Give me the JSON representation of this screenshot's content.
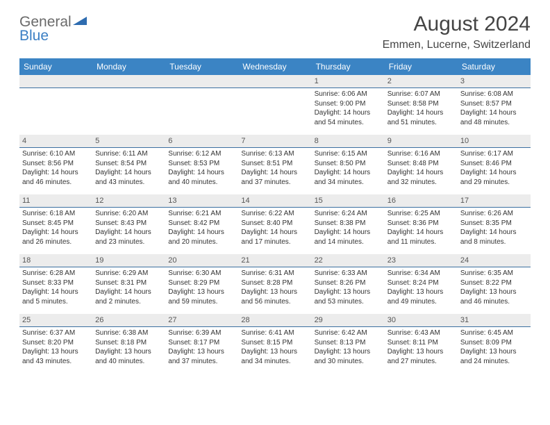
{
  "logo": {
    "line1": "General",
    "line2": "Blue"
  },
  "title": "August 2024",
  "subtitle": "Emmen, Lucerne, Switzerland",
  "colors": {
    "header_bg": "#3b84c4",
    "header_fg": "#ffffff",
    "date_bg": "#ececec",
    "date_border": "#3b6fa0",
    "title_color": "#444444",
    "body_fg": "#333333"
  },
  "day_headers": [
    "Sunday",
    "Monday",
    "Tuesday",
    "Wednesday",
    "Thursday",
    "Friday",
    "Saturday"
  ],
  "weeks": [
    [
      {
        "date": "",
        "sunrise": "",
        "sunset": "",
        "daylight": ""
      },
      {
        "date": "",
        "sunrise": "",
        "sunset": "",
        "daylight": ""
      },
      {
        "date": "",
        "sunrise": "",
        "sunset": "",
        "daylight": ""
      },
      {
        "date": "",
        "sunrise": "",
        "sunset": "",
        "daylight": ""
      },
      {
        "date": "1",
        "sunrise": "Sunrise: 6:06 AM",
        "sunset": "Sunset: 9:00 PM",
        "daylight": "Daylight: 14 hours and 54 minutes."
      },
      {
        "date": "2",
        "sunrise": "Sunrise: 6:07 AM",
        "sunset": "Sunset: 8:58 PM",
        "daylight": "Daylight: 14 hours and 51 minutes."
      },
      {
        "date": "3",
        "sunrise": "Sunrise: 6:08 AM",
        "sunset": "Sunset: 8:57 PM",
        "daylight": "Daylight: 14 hours and 48 minutes."
      }
    ],
    [
      {
        "date": "4",
        "sunrise": "Sunrise: 6:10 AM",
        "sunset": "Sunset: 8:56 PM",
        "daylight": "Daylight: 14 hours and 46 minutes."
      },
      {
        "date": "5",
        "sunrise": "Sunrise: 6:11 AM",
        "sunset": "Sunset: 8:54 PM",
        "daylight": "Daylight: 14 hours and 43 minutes."
      },
      {
        "date": "6",
        "sunrise": "Sunrise: 6:12 AM",
        "sunset": "Sunset: 8:53 PM",
        "daylight": "Daylight: 14 hours and 40 minutes."
      },
      {
        "date": "7",
        "sunrise": "Sunrise: 6:13 AM",
        "sunset": "Sunset: 8:51 PM",
        "daylight": "Daylight: 14 hours and 37 minutes."
      },
      {
        "date": "8",
        "sunrise": "Sunrise: 6:15 AM",
        "sunset": "Sunset: 8:50 PM",
        "daylight": "Daylight: 14 hours and 34 minutes."
      },
      {
        "date": "9",
        "sunrise": "Sunrise: 6:16 AM",
        "sunset": "Sunset: 8:48 PM",
        "daylight": "Daylight: 14 hours and 32 minutes."
      },
      {
        "date": "10",
        "sunrise": "Sunrise: 6:17 AM",
        "sunset": "Sunset: 8:46 PM",
        "daylight": "Daylight: 14 hours and 29 minutes."
      }
    ],
    [
      {
        "date": "11",
        "sunrise": "Sunrise: 6:18 AM",
        "sunset": "Sunset: 8:45 PM",
        "daylight": "Daylight: 14 hours and 26 minutes."
      },
      {
        "date": "12",
        "sunrise": "Sunrise: 6:20 AM",
        "sunset": "Sunset: 8:43 PM",
        "daylight": "Daylight: 14 hours and 23 minutes."
      },
      {
        "date": "13",
        "sunrise": "Sunrise: 6:21 AM",
        "sunset": "Sunset: 8:42 PM",
        "daylight": "Daylight: 14 hours and 20 minutes."
      },
      {
        "date": "14",
        "sunrise": "Sunrise: 6:22 AM",
        "sunset": "Sunset: 8:40 PM",
        "daylight": "Daylight: 14 hours and 17 minutes."
      },
      {
        "date": "15",
        "sunrise": "Sunrise: 6:24 AM",
        "sunset": "Sunset: 8:38 PM",
        "daylight": "Daylight: 14 hours and 14 minutes."
      },
      {
        "date": "16",
        "sunrise": "Sunrise: 6:25 AM",
        "sunset": "Sunset: 8:36 PM",
        "daylight": "Daylight: 14 hours and 11 minutes."
      },
      {
        "date": "17",
        "sunrise": "Sunrise: 6:26 AM",
        "sunset": "Sunset: 8:35 PM",
        "daylight": "Daylight: 14 hours and 8 minutes."
      }
    ],
    [
      {
        "date": "18",
        "sunrise": "Sunrise: 6:28 AM",
        "sunset": "Sunset: 8:33 PM",
        "daylight": "Daylight: 14 hours and 5 minutes."
      },
      {
        "date": "19",
        "sunrise": "Sunrise: 6:29 AM",
        "sunset": "Sunset: 8:31 PM",
        "daylight": "Daylight: 14 hours and 2 minutes."
      },
      {
        "date": "20",
        "sunrise": "Sunrise: 6:30 AM",
        "sunset": "Sunset: 8:29 PM",
        "daylight": "Daylight: 13 hours and 59 minutes."
      },
      {
        "date": "21",
        "sunrise": "Sunrise: 6:31 AM",
        "sunset": "Sunset: 8:28 PM",
        "daylight": "Daylight: 13 hours and 56 minutes."
      },
      {
        "date": "22",
        "sunrise": "Sunrise: 6:33 AM",
        "sunset": "Sunset: 8:26 PM",
        "daylight": "Daylight: 13 hours and 53 minutes."
      },
      {
        "date": "23",
        "sunrise": "Sunrise: 6:34 AM",
        "sunset": "Sunset: 8:24 PM",
        "daylight": "Daylight: 13 hours and 49 minutes."
      },
      {
        "date": "24",
        "sunrise": "Sunrise: 6:35 AM",
        "sunset": "Sunset: 8:22 PM",
        "daylight": "Daylight: 13 hours and 46 minutes."
      }
    ],
    [
      {
        "date": "25",
        "sunrise": "Sunrise: 6:37 AM",
        "sunset": "Sunset: 8:20 PM",
        "daylight": "Daylight: 13 hours and 43 minutes."
      },
      {
        "date": "26",
        "sunrise": "Sunrise: 6:38 AM",
        "sunset": "Sunset: 8:18 PM",
        "daylight": "Daylight: 13 hours and 40 minutes."
      },
      {
        "date": "27",
        "sunrise": "Sunrise: 6:39 AM",
        "sunset": "Sunset: 8:17 PM",
        "daylight": "Daylight: 13 hours and 37 minutes."
      },
      {
        "date": "28",
        "sunrise": "Sunrise: 6:41 AM",
        "sunset": "Sunset: 8:15 PM",
        "daylight": "Daylight: 13 hours and 34 minutes."
      },
      {
        "date": "29",
        "sunrise": "Sunrise: 6:42 AM",
        "sunset": "Sunset: 8:13 PM",
        "daylight": "Daylight: 13 hours and 30 minutes."
      },
      {
        "date": "30",
        "sunrise": "Sunrise: 6:43 AM",
        "sunset": "Sunset: 8:11 PM",
        "daylight": "Daylight: 13 hours and 27 minutes."
      },
      {
        "date": "31",
        "sunrise": "Sunrise: 6:45 AM",
        "sunset": "Sunset: 8:09 PM",
        "daylight": "Daylight: 13 hours and 24 minutes."
      }
    ]
  ]
}
